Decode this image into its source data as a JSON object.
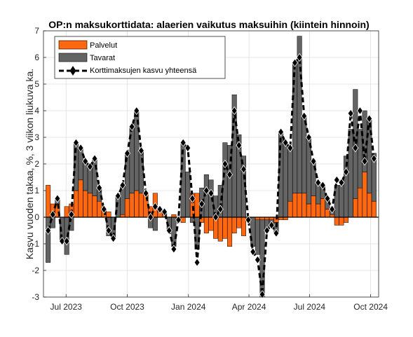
{
  "chart_data": {
    "type": "bar",
    "title": "OP:n maksukorttidata: alaerien vaikutus maksuihin (kiintein hinnoin)",
    "ylabel": "Kasvu vuoden takaa, %, 3 viikon liukuva ka.",
    "xlabel": "",
    "ylim": [
      -3,
      7
    ],
    "yticks": [
      -3,
      -2,
      -1,
      0,
      1,
      2,
      3,
      4,
      5,
      6,
      7
    ],
    "xtick_labels": [
      "Jul 2023",
      "Oct 2023",
      "Jan 2024",
      "Apr 2024",
      "Jul 2024",
      "Oct 2024"
    ],
    "xtick_dates": [
      "2023-07-01",
      "2023-10-01",
      "2024-01-01",
      "2024-04-01",
      "2024-07-01",
      "2024-10-01"
    ],
    "xlim": [
      "2023-05-28",
      "2024-10-13"
    ],
    "grid": true,
    "legend_placement": "top-left",
    "x": [
      "2023-06-04",
      "2023-06-11",
      "2023-06-18",
      "2023-06-25",
      "2023-07-02",
      "2023-07-09",
      "2023-07-16",
      "2023-07-23",
      "2023-07-30",
      "2023-08-06",
      "2023-08-13",
      "2023-08-20",
      "2023-08-27",
      "2023-09-03",
      "2023-09-10",
      "2023-09-17",
      "2023-09-24",
      "2023-10-01",
      "2023-10-08",
      "2023-10-15",
      "2023-10-22",
      "2023-10-29",
      "2023-11-05",
      "2023-11-12",
      "2023-11-19",
      "2023-11-26",
      "2023-12-03",
      "2023-12-10",
      "2023-12-17",
      "2023-12-24",
      "2023-12-31",
      "2024-01-07",
      "2024-01-14",
      "2024-01-21",
      "2024-01-28",
      "2024-02-04",
      "2024-02-11",
      "2024-02-18",
      "2024-02-25",
      "2024-03-03",
      "2024-03-10",
      "2024-03-17",
      "2024-03-24",
      "2024-03-31",
      "2024-04-07",
      "2024-04-14",
      "2024-04-21",
      "2024-04-28",
      "2024-05-05",
      "2024-05-12",
      "2024-05-19",
      "2024-05-26",
      "2024-06-02",
      "2024-06-09",
      "2024-06-16",
      "2024-06-23",
      "2024-06-30",
      "2024-07-07",
      "2024-07-14",
      "2024-07-21",
      "2024-07-28",
      "2024-08-04",
      "2024-08-11",
      "2024-08-18",
      "2024-08-25",
      "2024-09-01",
      "2024-09-08",
      "2024-09-15",
      "2024-09-22",
      "2024-09-29",
      "2024-10-06"
    ],
    "series": [
      {
        "name": "Palvelut",
        "kind": "bar",
        "color": "#ff6711",
        "values": [
          1.2,
          0.5,
          0.5,
          0.0,
          0.4,
          0.5,
          1.0,
          1.4,
          1.0,
          0.9,
          0.8,
          0.6,
          0.3,
          0.2,
          0.0,
          0.0,
          0.1,
          0.7,
          0.9,
          1.0,
          0.9,
          0.9,
          0.4,
          0.9,
          0.2,
          0.1,
          0.0,
          0.1,
          -0.1,
          -0.2,
          0.0,
          0.9,
          0.9,
          -0.2,
          -0.6,
          -0.5,
          -0.8,
          -0.9,
          -0.8,
          -1.1,
          -0.6,
          -0.4,
          -0.7,
          -0.1,
          0.0,
          -0.1,
          -0.1,
          -0.1,
          -0.1,
          -0.2,
          -0.1,
          -0.1,
          0.6,
          0.9,
          0.9,
          0.9,
          0.5,
          0.8,
          0.5,
          0.7,
          0.3,
          0.1,
          -0.3,
          -0.3,
          -0.2,
          0.0,
          0.7,
          1.1,
          1.7,
          0.9,
          0.6
        ]
      },
      {
        "name": "Tavarat",
        "kind": "bar",
        "color": "#646464",
        "values": [
          -1.7,
          -0.4,
          0.2,
          -0.9,
          -1.4,
          -0.5,
          1.8,
          1.2,
          1.1,
          1.0,
          1.4,
          0.5,
          0.0,
          -0.7,
          -0.8,
          0.8,
          1.1,
          1.7,
          2.5,
          3.0,
          1.6,
          0.0,
          -0.4,
          -0.5,
          0.1,
          0.1,
          -0.5,
          -1.1,
          0.0,
          2.8,
          1.7,
          -0.2,
          -1.2,
          1.1,
          1.6,
          1.4,
          0.8,
          1.2,
          2.8,
          2.7,
          4.6,
          3.1,
          2.3,
          0.0,
          -1.1,
          -1.3,
          -2.9,
          -0.4,
          -0.2,
          -0.4,
          3.2,
          2.8,
          2.0,
          4.9,
          5.9,
          2.9,
          2.5,
          1.3,
          0.8,
          0.5,
          0.4,
          0.2,
          1.2,
          1.2,
          2.3,
          3.3,
          4.1,
          2.2,
          2.3,
          2.8,
          1.8
        ]
      },
      {
        "name": "Korttimaksujen kasvu yhteensä",
        "kind": "line",
        "color": "#000000",
        "values": [
          -0.5,
          0.1,
          0.7,
          -0.9,
          -0.9,
          0.1,
          2.8,
          2.6,
          2.1,
          1.9,
          2.2,
          1.1,
          0.3,
          -0.5,
          -0.8,
          0.8,
          1.2,
          2.4,
          3.4,
          4.0,
          2.5,
          0.9,
          0.0,
          0.4,
          0.3,
          0.2,
          -0.5,
          -1.2,
          -0.1,
          2.8,
          2.6,
          0.7,
          -1.7,
          0.5,
          1.0,
          0.9,
          0.0,
          0.3,
          2.0,
          1.6,
          4.0,
          2.7,
          1.8,
          -0.1,
          -1.3,
          -1.6,
          -2.9,
          -0.5,
          -0.3,
          -0.6,
          3.2,
          2.8,
          2.6,
          5.8,
          6.0,
          3.8,
          3.0,
          2.1,
          1.3,
          1.2,
          0.7,
          0.3,
          1.4,
          1.3,
          1.7,
          3.9,
          2.6,
          4.0,
          2.1,
          3.7,
          2.2
        ]
      }
    ]
  }
}
